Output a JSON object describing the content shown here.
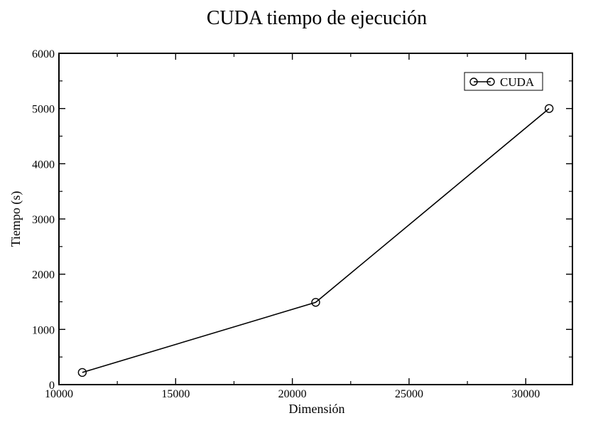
{
  "chart_data": {
    "type": "line",
    "title": "CUDA tiempo de ejecución",
    "xlabel": "Dimensión",
    "ylabel": "Tiempo (s)",
    "xlim": [
      10000,
      32000
    ],
    "ylim": [
      0,
      6000
    ],
    "xticks": [
      10000,
      15000,
      20000,
      25000,
      30000
    ],
    "yticks": [
      0,
      1000,
      2000,
      3000,
      4000,
      5000,
      6000
    ],
    "grid": false,
    "legend_position": "top-right",
    "series": [
      {
        "name": "CUDA",
        "color": "#000000",
        "marker": "circle",
        "x": [
          11000,
          21000,
          31000
        ],
        "y": [
          220,
          1490,
          5000
        ]
      }
    ]
  }
}
